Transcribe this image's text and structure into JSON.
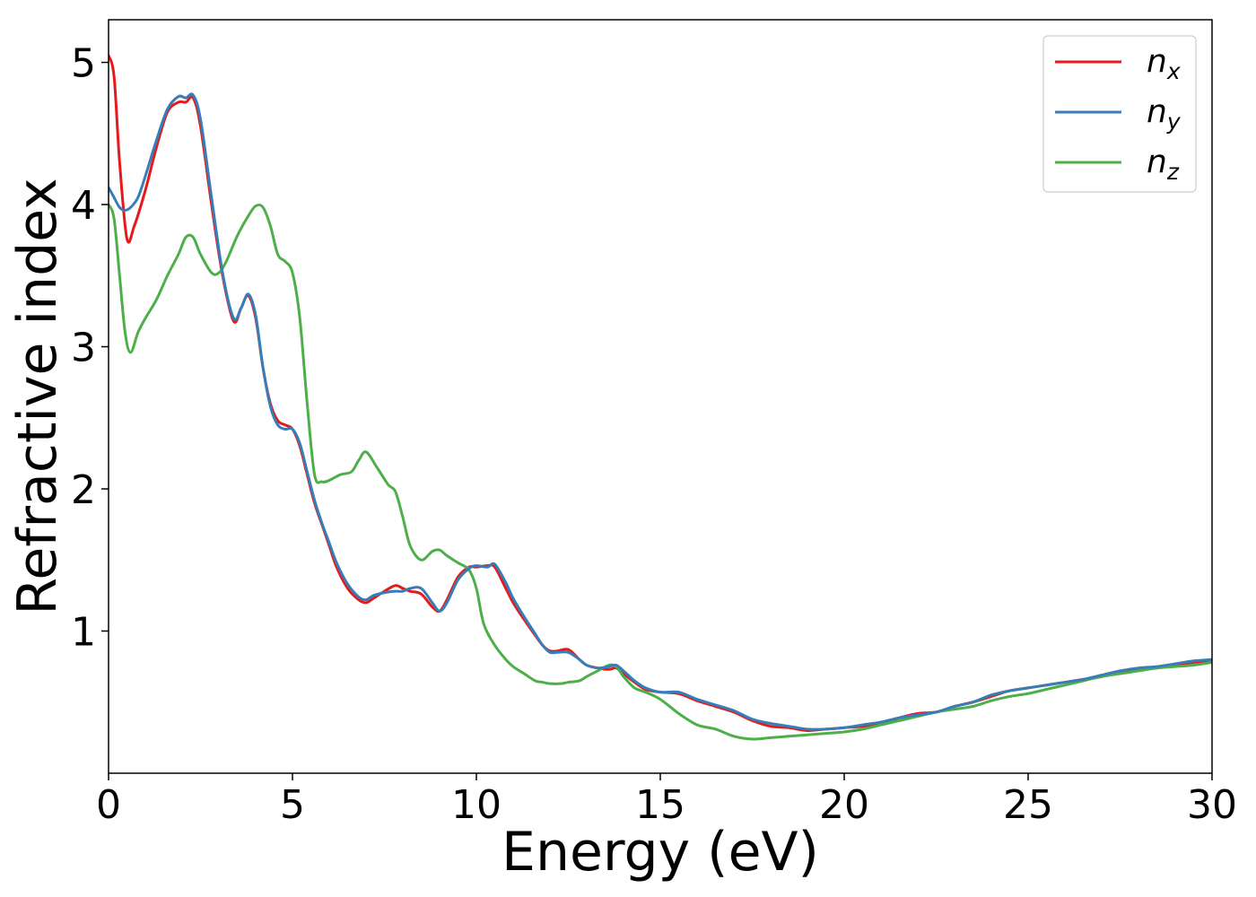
{
  "chart_data": {
    "type": "line",
    "title": "",
    "xlabel": "Energy (eV)",
    "ylabel": "Refractive index",
    "xlim": [
      0,
      30
    ],
    "ylim": [
      0,
      5.3
    ],
    "xticks": [
      0,
      5,
      10,
      15,
      20,
      25,
      30
    ],
    "yticks": [
      1,
      2,
      3,
      4,
      5
    ],
    "grid": false,
    "legend_position": "top-right",
    "series": [
      {
        "name": "n",
        "subscript": "x",
        "color": "#e41a1c",
        "x": [
          0,
          0.15,
          0.3,
          0.5,
          0.7,
          1.0,
          1.3,
          1.6,
          1.9,
          2.1,
          2.3,
          2.5,
          2.8,
          3.1,
          3.4,
          3.6,
          3.8,
          4.0,
          4.2,
          4.4,
          4.6,
          4.8,
          5.0,
          5.2,
          5.4,
          5.6,
          5.8,
          6.0,
          6.2,
          6.5,
          6.8,
          7.0,
          7.2,
          7.5,
          7.8,
          8.0,
          8.2,
          8.5,
          8.8,
          9.0,
          9.2,
          9.5,
          9.8,
          10.0,
          10.3,
          10.5,
          10.8,
          11.0,
          11.3,
          11.6,
          11.8,
          12.0,
          12.2,
          12.5,
          12.8,
          13.0,
          13.3,
          13.6,
          13.8,
          14.0,
          14.3,
          14.6,
          15.0,
          15.5,
          16.0,
          16.5,
          17.0,
          17.5,
          18.0,
          18.5,
          19.0,
          19.5,
          20.0,
          20.5,
          21.0,
          21.5,
          22.0,
          22.5,
          23.0,
          23.5,
          24.0,
          24.5,
          25.0,
          25.5,
          26.0,
          26.5,
          27.0,
          27.5,
          28.0,
          28.5,
          29.0,
          29.5,
          30.0
        ],
        "y": [
          5.05,
          4.9,
          4.3,
          3.76,
          3.85,
          4.1,
          4.4,
          4.65,
          4.72,
          4.72,
          4.75,
          4.55,
          4.0,
          3.5,
          3.18,
          3.27,
          3.36,
          3.2,
          2.85,
          2.6,
          2.48,
          2.45,
          2.42,
          2.3,
          2.1,
          1.9,
          1.75,
          1.6,
          1.45,
          1.3,
          1.22,
          1.2,
          1.23,
          1.28,
          1.32,
          1.3,
          1.28,
          1.26,
          1.17,
          1.14,
          1.22,
          1.38,
          1.45,
          1.45,
          1.46,
          1.45,
          1.3,
          1.2,
          1.08,
          0.97,
          0.9,
          0.86,
          0.86,
          0.87,
          0.8,
          0.76,
          0.74,
          0.73,
          0.74,
          0.7,
          0.64,
          0.59,
          0.57,
          0.56,
          0.51,
          0.47,
          0.43,
          0.37,
          0.33,
          0.32,
          0.3,
          0.31,
          0.32,
          0.33,
          0.35,
          0.39,
          0.42,
          0.43,
          0.47,
          0.5,
          0.54,
          0.58,
          0.6,
          0.62,
          0.64,
          0.66,
          0.68,
          0.71,
          0.73,
          0.74,
          0.76,
          0.78,
          0.79
        ]
      },
      {
        "name": "n",
        "subscript": "y",
        "color": "#377eb8",
        "x": [
          0,
          0.15,
          0.3,
          0.45,
          0.6,
          0.8,
          1.0,
          1.3,
          1.6,
          1.9,
          2.1,
          2.3,
          2.5,
          2.8,
          3.1,
          3.4,
          3.6,
          3.8,
          4.0,
          4.2,
          4.4,
          4.6,
          4.8,
          5.0,
          5.2,
          5.4,
          5.6,
          5.8,
          6.0,
          6.2,
          6.5,
          6.8,
          7.0,
          7.2,
          7.5,
          7.8,
          8.0,
          8.2,
          8.5,
          8.8,
          9.0,
          9.2,
          9.5,
          9.8,
          10.0,
          10.3,
          10.5,
          10.8,
          11.0,
          11.3,
          11.6,
          11.8,
          12.0,
          12.2,
          12.5,
          12.8,
          13.0,
          13.3,
          13.6,
          13.8,
          14.0,
          14.3,
          14.6,
          15.0,
          15.5,
          16.0,
          16.5,
          17.0,
          17.5,
          18.0,
          18.5,
          19.0,
          19.5,
          20.0,
          20.5,
          21.0,
          21.5,
          22.0,
          22.5,
          23.0,
          23.5,
          24.0,
          24.5,
          25.0,
          25.5,
          26.0,
          26.5,
          27.0,
          27.5,
          28.0,
          28.5,
          29.0,
          29.5,
          30.0
        ],
        "y": [
          4.12,
          4.05,
          3.98,
          3.96,
          3.98,
          4.05,
          4.2,
          4.45,
          4.67,
          4.76,
          4.75,
          4.77,
          4.6,
          4.05,
          3.52,
          3.2,
          3.27,
          3.37,
          3.22,
          2.85,
          2.58,
          2.45,
          2.42,
          2.42,
          2.32,
          2.12,
          1.92,
          1.76,
          1.62,
          1.48,
          1.33,
          1.24,
          1.22,
          1.25,
          1.27,
          1.28,
          1.28,
          1.3,
          1.3,
          1.2,
          1.14,
          1.2,
          1.36,
          1.44,
          1.46,
          1.45,
          1.47,
          1.34,
          1.23,
          1.1,
          0.98,
          0.9,
          0.85,
          0.85,
          0.85,
          0.8,
          0.76,
          0.74,
          0.75,
          0.76,
          0.72,
          0.65,
          0.6,
          0.57,
          0.57,
          0.52,
          0.48,
          0.44,
          0.38,
          0.35,
          0.33,
          0.31,
          0.31,
          0.32,
          0.34,
          0.36,
          0.39,
          0.41,
          0.43,
          0.47,
          0.5,
          0.55,
          0.58,
          0.6,
          0.62,
          0.64,
          0.66,
          0.69,
          0.72,
          0.74,
          0.75,
          0.77,
          0.79,
          0.8
        ]
      },
      {
        "name": "n",
        "subscript": "z",
        "color": "#4daf4a",
        "x": [
          0,
          0.15,
          0.3,
          0.45,
          0.6,
          0.8,
          1.0,
          1.3,
          1.6,
          1.9,
          2.1,
          2.3,
          2.5,
          2.8,
          3.0,
          3.2,
          3.5,
          3.8,
          4.0,
          4.2,
          4.4,
          4.6,
          4.8,
          5.0,
          5.2,
          5.4,
          5.6,
          5.8,
          6.0,
          6.3,
          6.6,
          6.8,
          7.0,
          7.3,
          7.6,
          7.8,
          8.0,
          8.2,
          8.5,
          8.8,
          9.0,
          9.2,
          9.5,
          9.8,
          10.0,
          10.2,
          10.5,
          10.8,
          11.0,
          11.3,
          11.6,
          11.8,
          12.0,
          12.3,
          12.5,
          12.8,
          13.0,
          13.3,
          13.6,
          13.8,
          14.0,
          14.3,
          14.6,
          15.0,
          15.5,
          16.0,
          16.5,
          17.0,
          17.5,
          18.0,
          18.5,
          19.0,
          19.5,
          20.0,
          20.5,
          21.0,
          21.5,
          22.0,
          22.5,
          23.0,
          23.5,
          24.0,
          24.5,
          25.0,
          25.5,
          26.0,
          26.5,
          27.0,
          27.5,
          28.0,
          28.5,
          29.0,
          29.5,
          30.0
        ],
        "y": [
          4.0,
          3.9,
          3.5,
          3.1,
          2.96,
          3.1,
          3.2,
          3.33,
          3.5,
          3.65,
          3.77,
          3.77,
          3.65,
          3.52,
          3.52,
          3.6,
          3.78,
          3.92,
          3.99,
          3.98,
          3.85,
          3.65,
          3.6,
          3.52,
          3.2,
          2.6,
          2.1,
          2.05,
          2.06,
          2.1,
          2.12,
          2.2,
          2.26,
          2.15,
          2.03,
          1.98,
          1.8,
          1.6,
          1.5,
          1.56,
          1.57,
          1.53,
          1.48,
          1.43,
          1.3,
          1.05,
          0.9,
          0.8,
          0.75,
          0.7,
          0.65,
          0.64,
          0.63,
          0.63,
          0.64,
          0.65,
          0.68,
          0.72,
          0.76,
          0.75,
          0.68,
          0.6,
          0.57,
          0.52,
          0.42,
          0.34,
          0.31,
          0.26,
          0.24,
          0.25,
          0.26,
          0.27,
          0.28,
          0.29,
          0.31,
          0.34,
          0.37,
          0.4,
          0.43,
          0.45,
          0.47,
          0.51,
          0.54,
          0.56,
          0.59,
          0.62,
          0.65,
          0.68,
          0.7,
          0.72,
          0.74,
          0.75,
          0.76,
          0.78
        ]
      }
    ]
  }
}
